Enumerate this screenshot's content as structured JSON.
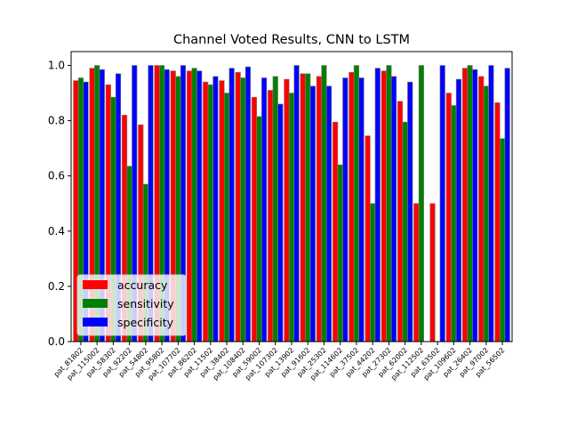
{
  "chart_data": {
    "type": "bar",
    "title": "Channel Voted Results, CNN to LSTM",
    "xlabel": "",
    "ylabel": "",
    "ylim": [
      0.0,
      1.05
    ],
    "yticks": [
      "0.0",
      "0.2",
      "0.4",
      "0.6",
      "0.8",
      "1.0"
    ],
    "grid": false,
    "legend_position": "lower-left",
    "categories": [
      "pat_81802",
      "pat_115002",
      "pat_58302",
      "pat_92202",
      "pat_54802",
      "pat_95802",
      "pat_107702",
      "pat_86202",
      "pat_11502",
      "pat_38402",
      "pat_108402",
      "pat_59002",
      "pat_107302",
      "pat_13902",
      "pat_91602",
      "pat_25302",
      "pat_114602",
      "pat_37502",
      "pat_44202",
      "pat_27302",
      "pat_62002",
      "pat_112502",
      "pat_63502",
      "pat_109602",
      "pat_26402",
      "pat_97002",
      "pat_56502"
    ],
    "series": [
      {
        "name": "accuracy",
        "color": "#ff0000",
        "values": [
          0.945,
          0.99,
          0.93,
          0.82,
          0.785,
          1.0,
          0.98,
          0.98,
          0.94,
          0.945,
          0.975,
          0.885,
          0.91,
          0.95,
          0.97,
          0.96,
          0.795,
          0.975,
          0.745,
          0.98,
          0.87,
          0.5,
          0.5,
          0.9,
          0.99,
          0.96,
          0.865
        ]
      },
      {
        "name": "sensitivity",
        "color": "#008000",
        "values": [
          0.955,
          1.0,
          0.885,
          0.635,
          0.57,
          1.0,
          0.96,
          0.99,
          0.93,
          0.9,
          0.955,
          0.815,
          0.96,
          0.9,
          0.97,
          1.0,
          0.64,
          1.0,
          0.5,
          1.0,
          0.795,
          1.0,
          0.0,
          0.855,
          1.0,
          0.925,
          0.735
        ]
      },
      {
        "name": "specificity",
        "color": "#0000ff",
        "values": [
          0.94,
          0.985,
          0.97,
          1.0,
          1.0,
          0.985,
          1.0,
          0.98,
          0.96,
          0.99,
          0.995,
          0.955,
          0.86,
          1.0,
          0.925,
          0.925,
          0.955,
          0.955,
          0.99,
          0.96,
          0.94,
          0.0,
          1.0,
          0.95,
          0.985,
          1.0,
          0.99
        ]
      }
    ]
  }
}
